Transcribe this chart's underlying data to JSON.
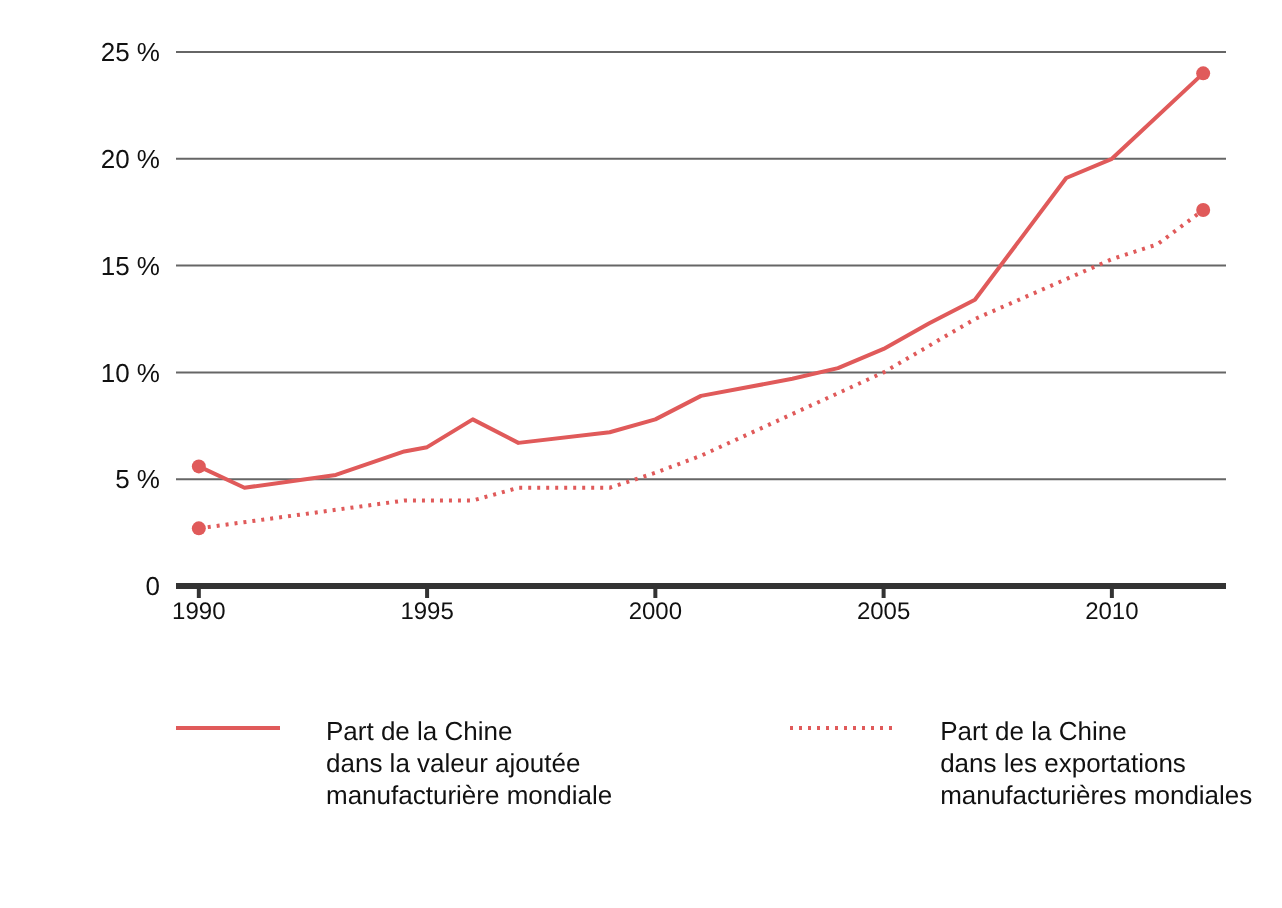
{
  "chart_data": {
    "type": "line",
    "xlim": [
      1989.5,
      2012.5
    ],
    "xticks": [
      1990,
      1995,
      2000,
      2005,
      2010
    ],
    "ylim": [
      0,
      25
    ],
    "yticks": [
      {
        "value": 0,
        "label": "0"
      },
      {
        "value": 5,
        "label": "5 %"
      },
      {
        "value": 10,
        "label": "10 %"
      },
      {
        "value": 15,
        "label": "15 %"
      },
      {
        "value": 20,
        "label": "20 %"
      },
      {
        "value": 25,
        "label": "25 %"
      }
    ],
    "grid": "y",
    "legend": "bottom",
    "marker": "none",
    "series": [
      {
        "name": "Part de la Chine\ndans la valeur ajoutée\nmanufacturière mondiale",
        "color": "#e05a5a",
        "line_style": "solid",
        "x": [
          1990,
          1991,
          1993,
          1994.5,
          1995,
          1996,
          1997,
          1999,
          2000,
          2001,
          2003,
          2004,
          2005,
          2006,
          2007,
          2009,
          2010,
          2012
        ],
        "values": [
          5.6,
          4.6,
          5.2,
          6.3,
          6.5,
          7.8,
          6.7,
          7.2,
          7.8,
          8.9,
          9.7,
          10.2,
          11.1,
          12.3,
          13.4,
          19.1,
          20.0,
          24.0
        ]
      },
      {
        "name": "Part de la Chine\ndans les exportations\nmanufacturières mondiales",
        "color": "#e05a5a",
        "line_style": "dotted",
        "x": [
          1990,
          1994.5,
          1996,
          1997,
          1999,
          2000,
          2001,
          2005,
          2007,
          2010,
          2011,
          2012
        ],
        "values": [
          2.7,
          4.0,
          4.0,
          4.6,
          4.6,
          5.3,
          6.1,
          10.0,
          12.5,
          15.3,
          16.0,
          17.6
        ]
      },
      {
        "type": "scatter",
        "marker": "circle",
        "color": "#e05a5a",
        "x": [
          1990,
          2012
        ],
        "values": [
          5.6,
          24.0
        ]
      },
      {
        "type": "scatter",
        "marker": "circle",
        "color": "#e05a5a",
        "x": [
          1990,
          2012
        ],
        "values": [
          2.7,
          17.6
        ]
      }
    ]
  }
}
